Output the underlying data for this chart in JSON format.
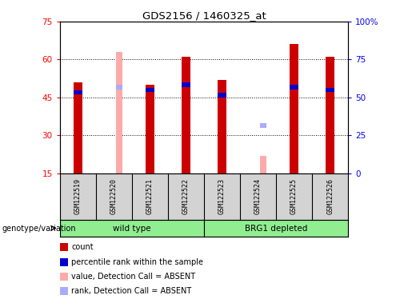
{
  "title": "GDS2156 / 1460325_at",
  "samples": [
    "GSM122519",
    "GSM122520",
    "GSM122521",
    "GSM122522",
    "GSM122523",
    "GSM122524",
    "GSM122525",
    "GSM122526"
  ],
  "count_values": [
    51,
    null,
    50,
    61,
    52,
    null,
    66,
    61
  ],
  "rank_values": [
    47,
    null,
    48,
    50,
    46,
    null,
    49,
    48
  ],
  "absent_value_values": [
    null,
    63,
    null,
    null,
    null,
    22,
    null,
    null
  ],
  "absent_rank_values": [
    null,
    49,
    null,
    null,
    null,
    34,
    null,
    null
  ],
  "ylim": [
    15,
    75
  ],
  "y2lim": [
    0,
    100
  ],
  "yticks": [
    15,
    30,
    45,
    60,
    75
  ],
  "y2ticks": [
    0,
    25,
    50,
    75,
    100
  ],
  "bar_color_red": "#cc0000",
  "bar_color_blue": "#0000cc",
  "bar_color_pink": "#ffaaaa",
  "bar_color_lightblue": "#aaaaff",
  "bar_width": 0.25,
  "plot_bg_color": "#ffffff",
  "cell_bg_color": "#d3d3d3",
  "green_color": "#90ee90",
  "genotype_label": "genotype/variation",
  "wild_type_label": "wild type",
  "brg1_label": "BRG1 depleted",
  "legend_items": [
    {
      "label": "count",
      "color": "#cc0000"
    },
    {
      "label": "percentile rank within the sample",
      "color": "#0000cc"
    },
    {
      "label": "value, Detection Call = ABSENT",
      "color": "#ffaaaa"
    },
    {
      "label": "rank, Detection Call = ABSENT",
      "color": "#aaaaff"
    }
  ]
}
